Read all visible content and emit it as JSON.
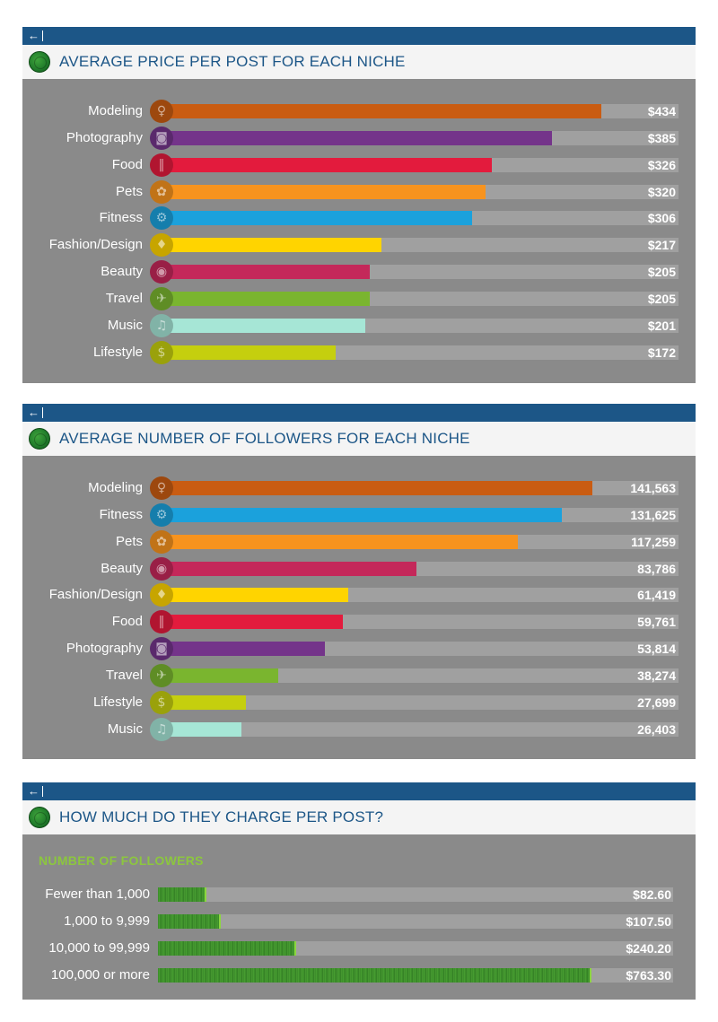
{
  "colors": {
    "title_bar": "#1c5687",
    "panel_bg": "#8a8a8a",
    "track": "#a0a0a0",
    "subtitle_green": "#8cc63f",
    "Modeling": "#c95c12",
    "Photography": "#74348a",
    "Food": "#e31b3d",
    "Pets": "#f7931e",
    "Fitness": "#1ba1dc",
    "Fashion/Design": "#ffd400",
    "Beauty": "#c4285a",
    "Travel": "#7ab52f",
    "Music": "#a6e6d6",
    "Lifestyle": "#c5cf0e"
  },
  "icons": {
    "Modeling": "model-figure-icon",
    "Photography": "camera-icon",
    "Food": "fork-knife-icon",
    "Pets": "paw-icon",
    "Fitness": "treadmill-icon",
    "Fashion/Design": "dress-icon",
    "Beauty": "lips-icon",
    "Travel": "airplane-icon",
    "Music": "music-note-icon",
    "Lifestyle": "money-bag-icon"
  },
  "panels": {
    "back_arrow": "←",
    "price_title": "AVERAGE PRICE PER POST FOR EACH NICHE",
    "followers_title": "AVERAGE NUMBER OF FOLLOWERS FOR EACH NICHE",
    "charge_title": "HOW MUCH DO THEY CHARGE PER POST?",
    "charge_subtitle": "NUMBER OF FOLLOWERS"
  },
  "chart_data": [
    {
      "type": "bar",
      "orientation": "horizontal",
      "title": "AVERAGE PRICE PER POST FOR EACH NICHE",
      "categories": [
        "Modeling",
        "Photography",
        "Food",
        "Pets",
        "Fitness",
        "Fashion/Design",
        "Beauty",
        "Travel",
        "Music",
        "Lifestyle"
      ],
      "values": [
        434,
        385,
        326,
        320,
        306,
        217,
        205,
        205,
        201,
        172
      ],
      "value_labels": [
        "$434",
        "$385",
        "$326",
        "$320",
        "$306",
        "$217",
        "$205",
        "$205",
        "$201",
        "$172"
      ],
      "xlim": [
        0,
        510
      ]
    },
    {
      "type": "bar",
      "orientation": "horizontal",
      "title": "AVERAGE NUMBER OF FOLLOWERS FOR EACH NICHE",
      "categories": [
        "Modeling",
        "Fitness",
        "Pets",
        "Beauty",
        "Fashion/Design",
        "Food",
        "Photography",
        "Travel",
        "Lifestyle",
        "Music"
      ],
      "values": [
        141563,
        131625,
        117259,
        83786,
        61419,
        59761,
        53814,
        38274,
        27699,
        26403
      ],
      "value_labels": [
        "141,563",
        "131,625",
        "117,259",
        "83,786",
        "61,419",
        "59,761",
        "53,814",
        "38,274",
        "27,699",
        "26,403"
      ],
      "xlim": [
        0,
        170000
      ]
    },
    {
      "type": "bar",
      "orientation": "horizontal",
      "title": "HOW MUCH DO THEY CHARGE PER POST?",
      "subtitle": "NUMBER OF FOLLOWERS",
      "categories": [
        "Fewer than 1,000",
        "1,000 to 9,999",
        "10,000 to 99,999",
        "100,000 or more"
      ],
      "values": [
        82.6,
        107.5,
        240.2,
        763.3
      ],
      "value_labels": [
        "$82.60",
        "$107.50",
        "$240.20",
        "$763.30"
      ],
      "xlim": [
        0,
        910
      ]
    }
  ]
}
